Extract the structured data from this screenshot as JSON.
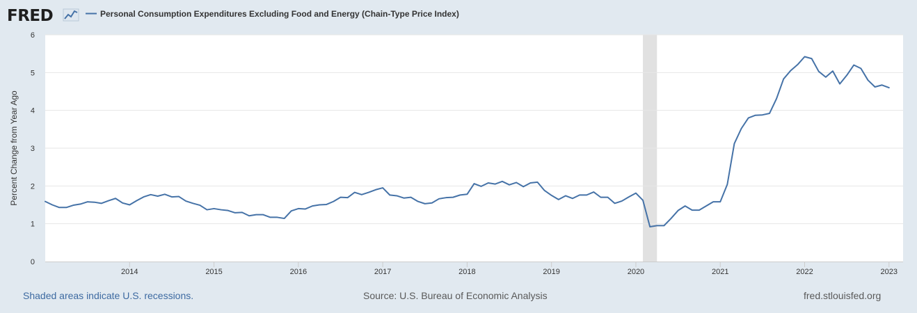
{
  "header": {
    "logo_text": "FRED"
  },
  "colors": {
    "series": "#4572a7",
    "recession": "#e1e1e1",
    "plot_bg": "#ffffff",
    "page_bg": "#e1e9f0",
    "grid": "#e6e6e6"
  },
  "footer": {
    "recession_note": "Shaded areas indicate U.S. recessions.",
    "source": "Source: U.S. Bureau of Economic Analysis",
    "site": "fred.stlouisfed.org"
  },
  "chart_data": {
    "type": "line",
    "title": "",
    "xlabel": "",
    "ylabel": "Percent Change from Year Ago",
    "ylim": [
      0,
      6
    ],
    "yticks": [
      0,
      1,
      2,
      3,
      4,
      5,
      6
    ],
    "xlim": [
      "2013-01",
      "2023-03"
    ],
    "xticks": [
      "2014",
      "2015",
      "2016",
      "2017",
      "2018",
      "2019",
      "2020",
      "2021",
      "2022",
      "2023"
    ],
    "grid": true,
    "legend": "top-left",
    "recessions": [
      {
        "start": "2020-02",
        "end": "2020-04"
      }
    ],
    "series": [
      {
        "name": "Personal Consumption Expenditures Excluding Food and Energy (Chain-Type Price Index)",
        "start": "2013-01",
        "frequency": "monthly",
        "values": [
          1.59,
          1.5,
          1.43,
          1.43,
          1.49,
          1.52,
          1.58,
          1.57,
          1.54,
          1.61,
          1.67,
          1.55,
          1.5,
          1.61,
          1.71,
          1.77,
          1.73,
          1.78,
          1.71,
          1.72,
          1.6,
          1.54,
          1.49,
          1.37,
          1.4,
          1.37,
          1.35,
          1.29,
          1.3,
          1.21,
          1.24,
          1.24,
          1.17,
          1.17,
          1.14,
          1.34,
          1.4,
          1.39,
          1.47,
          1.5,
          1.51,
          1.59,
          1.7,
          1.69,
          1.83,
          1.77,
          1.83,
          1.9,
          1.95,
          1.76,
          1.74,
          1.68,
          1.7,
          1.59,
          1.53,
          1.55,
          1.66,
          1.69,
          1.7,
          1.76,
          1.78,
          2.06,
          1.99,
          2.08,
          2.05,
          2.12,
          2.03,
          2.09,
          1.98,
          2.08,
          2.1,
          1.88,
          1.75,
          1.64,
          1.74,
          1.67,
          1.76,
          1.76,
          1.84,
          1.7,
          1.7,
          1.54,
          1.6,
          1.71,
          1.81,
          1.62,
          0.92,
          0.95,
          0.95,
          1.14,
          1.35,
          1.47,
          1.36,
          1.36,
          1.47,
          1.58,
          1.58,
          2.04,
          3.12,
          3.52,
          3.8,
          3.87,
          3.88,
          3.92,
          4.31,
          4.83,
          5.05,
          5.21,
          5.42,
          5.37,
          5.03,
          4.88,
          5.04,
          4.7,
          4.93,
          5.2,
          5.11,
          4.8,
          4.62,
          4.67,
          4.6
        ]
      }
    ]
  }
}
